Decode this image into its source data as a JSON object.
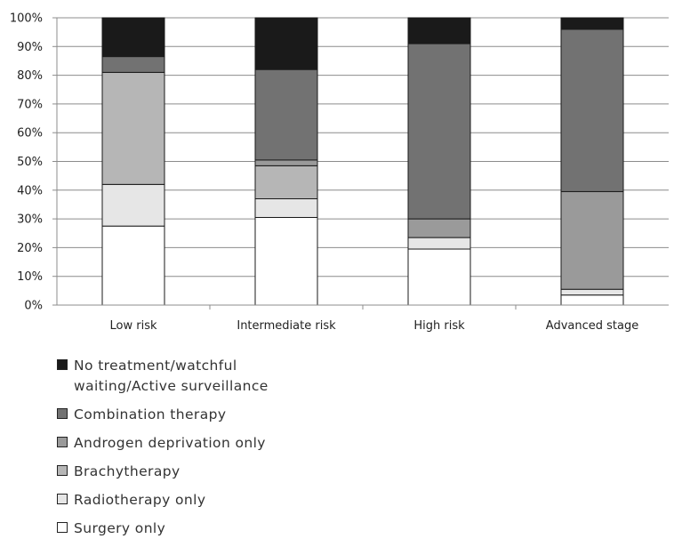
{
  "chart_data": {
    "type": "bar",
    "stacked": true,
    "percent": true,
    "categories": [
      "Low risk",
      "Intermediate risk",
      "High risk",
      "Advanced stage"
    ],
    "y_ticks": [
      "0%",
      "10%",
      "20%",
      "30%",
      "40%",
      "50%",
      "60%",
      "70%",
      "80%",
      "90%",
      "100%"
    ],
    "ylim": [
      0,
      100
    ],
    "grid": true,
    "legend_position": "bottom",
    "series": [
      {
        "name": "Surgery only",
        "color": "#ffffff",
        "values": [
          27.5,
          30.5,
          19.5,
          3.5
        ]
      },
      {
        "name": "Radiotherapy only",
        "color": "#e6e6e6",
        "values": [
          14.5,
          6.5,
          4.0,
          2.0
        ]
      },
      {
        "name": "Brachytherapy",
        "color": "#b6b6b6",
        "values": [
          39.0,
          11.5,
          0,
          0
        ]
      },
      {
        "name": "Androgen deprivation only",
        "color": "#9a9a9a",
        "values": [
          0,
          2.0,
          6.5,
          34.0
        ]
      },
      {
        "name": "Combination therapy",
        "color": "#727272",
        "values": [
          5.5,
          31.5,
          61.0,
          56.5
        ]
      },
      {
        "name": "No treatment/watchful waiting/Active surveillance",
        "color": "#1a1a1a",
        "values": [
          13.5,
          18.0,
          9.0,
          4.0
        ]
      }
    ]
  },
  "legend": [
    {
      "label": "No treatment/watchful waiting/Active surveillance",
      "color": "#1a1a1a"
    },
    {
      "label": "Combination therapy",
      "color": "#727272"
    },
    {
      "label": "Androgen deprivation only",
      "color": "#9a9a9a"
    },
    {
      "label": "Brachytherapy",
      "color": "#b6b6b6"
    },
    {
      "label": "Radiotherapy only",
      "color": "#e6e6e6"
    },
    {
      "label": "Surgery only",
      "color": "#ffffff"
    }
  ]
}
